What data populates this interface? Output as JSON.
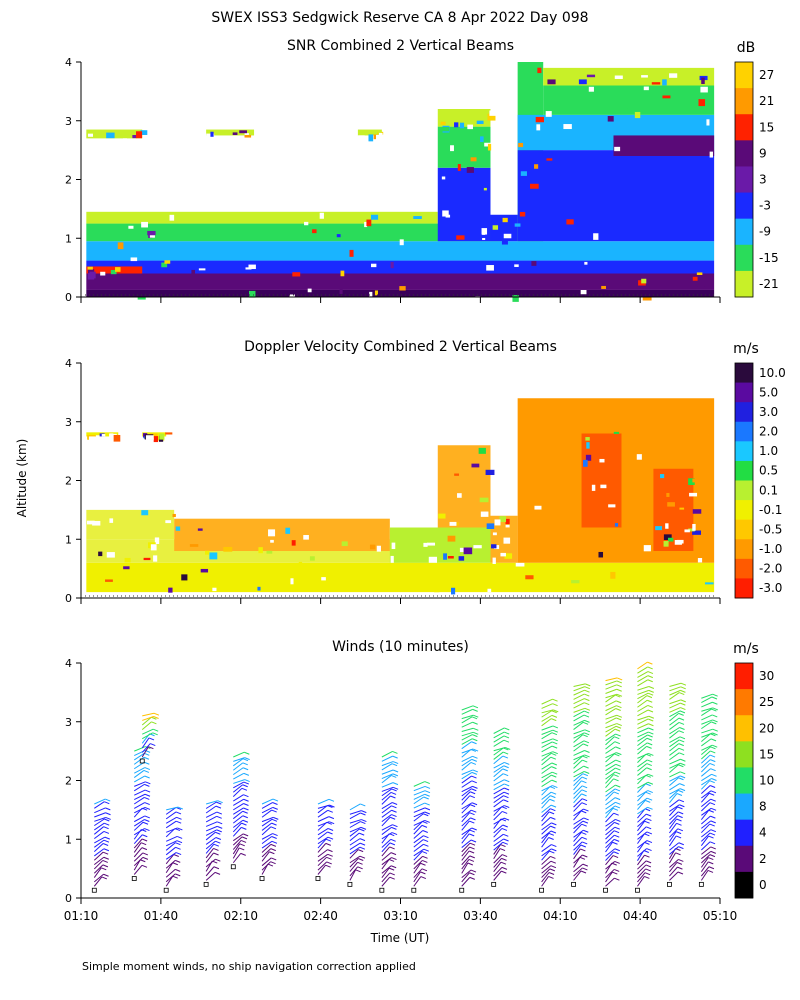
{
  "figure": {
    "title": "SWEX ISS3 Sedgwick Reserve CA   8 Apr 2022 Day 098",
    "ylabel": "Altitude (km)",
    "xlabel": "Time (UT)",
    "footnote": "Simple moment winds, no ship navigation correction applied"
  },
  "chart_data": [
    {
      "type": "heatmap",
      "title": "SNR Combined 2 Vertical Beams",
      "xlabel": "Time (UT)",
      "ylabel": "Altitude (km)",
      "x_ticks": [
        "01:10",
        "01:40",
        "02:10",
        "02:40",
        "03:10",
        "03:40",
        "04:10",
        "04:40",
        "05:10"
      ],
      "xlim_hours": [
        1.1667,
        5.1667
      ],
      "ylim_km": [
        0,
        4
      ],
      "y_ticks": [
        "0",
        "1",
        "2",
        "3",
        "4"
      ],
      "colorbar": {
        "unit": "dB",
        "labels": [
          "27",
          "21",
          "15",
          "9",
          "3",
          "-3",
          "-9",
          "-15",
          "-21"
        ],
        "colors": [
          "#ffd200",
          "#ff9a00",
          "#ff2200",
          "#5a0a78",
          "#6a1aa8",
          "#1a2aff",
          "#1ab4ff",
          "#2adc5a",
          "#c8f028"
        ]
      },
      "fields": [
        {
          "t0": 1.2,
          "t1": 5.13,
          "z0": 0.0,
          "z1": 0.12,
          "c": "#3a005a"
        },
        {
          "t0": 1.2,
          "t1": 5.13,
          "z0": 0.12,
          "z1": 0.4,
          "c": "#5a0a78"
        },
        {
          "t0": 1.2,
          "t1": 5.13,
          "z0": 0.4,
          "z1": 0.62,
          "c": "#1a2aff"
        },
        {
          "t0": 1.2,
          "t1": 5.13,
          "z0": 0.62,
          "z1": 0.95,
          "c": "#1ab4ff"
        },
        {
          "t0": 1.2,
          "t1": 3.8,
          "z0": 0.95,
          "z1": 1.25,
          "c": "#2adc5a"
        },
        {
          "t0": 1.2,
          "t1": 3.4,
          "z0": 1.25,
          "z1": 1.45,
          "c": "#c8f028"
        },
        {
          "t0": 1.2,
          "t1": 1.55,
          "z0": 0.4,
          "z1": 0.52,
          "c": "#ff2200"
        },
        {
          "t0": 3.4,
          "t1": 3.73,
          "z0": 0.95,
          "z1": 2.2,
          "c": "#1a2aff"
        },
        {
          "t0": 3.4,
          "t1": 3.73,
          "z0": 2.2,
          "z1": 2.9,
          "c": "#2adc5a"
        },
        {
          "t0": 3.4,
          "t1": 3.73,
          "z0": 2.9,
          "z1": 3.2,
          "c": "#c8f028"
        },
        {
          "t0": 3.73,
          "t1": 3.9,
          "z0": 0.95,
          "z1": 1.4,
          "c": "#1a2aff"
        },
        {
          "t0": 3.9,
          "t1": 4.06,
          "z0": 0.95,
          "z1": 4.0,
          "c": "#2adc5a"
        },
        {
          "t0": 3.9,
          "t1": 5.13,
          "z0": 0.95,
          "z1": 2.5,
          "c": "#1a2aff"
        },
        {
          "t0": 3.9,
          "t1": 5.13,
          "z0": 2.5,
          "z1": 3.1,
          "c": "#1ab4ff"
        },
        {
          "t0": 4.06,
          "t1": 5.13,
          "z0": 3.1,
          "z1": 3.6,
          "c": "#2adc5a"
        },
        {
          "t0": 4.06,
          "t1": 5.13,
          "z0": 3.6,
          "z1": 3.9,
          "c": "#c8f028"
        },
        {
          "t0": 4.5,
          "t1": 5.13,
          "z0": 2.4,
          "z1": 2.75,
          "c": "#5a0a78"
        },
        {
          "t0": 1.2,
          "t1": 1.55,
          "z0": 2.7,
          "z1": 2.85,
          "c": "#c8f028"
        },
        {
          "t0": 1.95,
          "t1": 2.25,
          "z0": 2.75,
          "z1": 2.85,
          "c": "#c8f028"
        },
        {
          "t0": 2.9,
          "t1": 3.05,
          "z0": 2.75,
          "z1": 2.85,
          "c": "#c8f028"
        }
      ]
    },
    {
      "type": "heatmap",
      "title": "Doppler Velocity Combined 2 Vertical Beams",
      "xlabel": "Time (UT)",
      "ylabel": "Altitude (km)",
      "x_ticks": [
        "01:10",
        "01:40",
        "02:10",
        "02:40",
        "03:10",
        "03:40",
        "04:10",
        "04:40",
        "05:10"
      ],
      "xlim_hours": [
        1.1667,
        5.1667
      ],
      "ylim_km": [
        0,
        4
      ],
      "y_ticks": [
        "0",
        "1",
        "2",
        "3",
        "4"
      ],
      "colorbar": {
        "unit": "m/s",
        "labels": [
          "10.0",
          "5.0",
          "3.0",
          "2.0",
          "1.0",
          "0.5",
          "0.1",
          "-0.1",
          "-0.5",
          "-1.0",
          "-2.0",
          "-3.0"
        ],
        "colors": [
          "#2a0a3c",
          "#5a0aa0",
          "#2020e0",
          "#1a78ff",
          "#1ac8ff",
          "#22dd44",
          "#b8f030",
          "#f0f000",
          "#ffc800",
          "#ff9a00",
          "#ff5a00",
          "#ff1e00"
        ]
      },
      "fields": [
        {
          "t0": 1.2,
          "t1": 5.13,
          "z0": 0.1,
          "z1": 0.6,
          "c": "#f0f000"
        },
        {
          "t0": 1.2,
          "t1": 3.4,
          "z0": 0.6,
          "z1": 1.0,
          "c": "#e8f040"
        },
        {
          "t0": 1.2,
          "t1": 1.75,
          "z0": 1.0,
          "z1": 1.5,
          "c": "#e8f040"
        },
        {
          "t0": 1.75,
          "t1": 3.1,
          "z0": 0.8,
          "z1": 1.35,
          "c": "#ffb020"
        },
        {
          "t0": 3.1,
          "t1": 3.73,
          "z0": 0.6,
          "z1": 1.2,
          "c": "#b8f030"
        },
        {
          "t0": 3.4,
          "t1": 3.73,
          "z0": 1.2,
          "z1": 2.6,
          "c": "#ffb020"
        },
        {
          "t0": 3.73,
          "t1": 3.9,
          "z0": 0.6,
          "z1": 1.4,
          "c": "#ffb020"
        },
        {
          "t0": 3.9,
          "t1": 5.13,
          "z0": 0.6,
          "z1": 3.4,
          "c": "#ff9a00"
        },
        {
          "t0": 4.3,
          "t1": 4.55,
          "z0": 1.2,
          "z1": 2.8,
          "c": "#ff5a00"
        },
        {
          "t0": 4.75,
          "t1": 5.0,
          "z0": 0.8,
          "z1": 2.2,
          "c": "#ff5a00"
        },
        {
          "t0": 1.2,
          "t1": 1.4,
          "z0": 2.75,
          "z1": 2.82,
          "c": "#f0f000"
        },
        {
          "t0": 1.55,
          "t1": 1.7,
          "z0": 2.75,
          "z1": 2.82,
          "c": "#f0f000"
        }
      ]
    },
    {
      "type": "scatter",
      "subtype": "wind-barbs",
      "title": "Winds (10 minutes)",
      "xlabel": "Time (UT)",
      "ylabel": "Altitude (km)",
      "x_ticks": [
        "01:10",
        "01:40",
        "02:10",
        "02:40",
        "03:10",
        "03:40",
        "04:10",
        "04:40",
        "05:10"
      ],
      "xlim_hours": [
        1.1667,
        5.1667
      ],
      "ylim_km": [
        0,
        4
      ],
      "y_ticks": [
        "0",
        "1",
        "2",
        "3",
        "4"
      ],
      "colorbar": {
        "unit": "m/s",
        "labels": [
          "30",
          "25",
          "20",
          "15",
          "10",
          "8",
          "4",
          "2",
          "0"
        ],
        "colors": [
          "#ff1e00",
          "#ff7a00",
          "#ffc000",
          "#8ee020",
          "#22dd66",
          "#1aa8ff",
          "#2020ff",
          "#5a0a78",
          "#000000"
        ]
      },
      "profiles": [
        {
          "t": 1.25,
          "z0": 0.2,
          "z1": 1.6,
          "speed_top": 6
        },
        {
          "t": 1.5,
          "z0": 0.4,
          "z1": 2.5,
          "speed_top": 8
        },
        {
          "t": 1.55,
          "z0": 2.4,
          "z1": 3.1,
          "speed_top": 22
        },
        {
          "t": 1.7,
          "z0": 0.2,
          "z1": 1.5,
          "speed_top": 6
        },
        {
          "t": 1.95,
          "z0": 0.3,
          "z1": 1.6,
          "speed_top": 6
        },
        {
          "t": 2.12,
          "z0": 0.6,
          "z1": 2.4,
          "speed_top": 8
        },
        {
          "t": 2.3,
          "z0": 0.4,
          "z1": 1.6,
          "speed_top": 6
        },
        {
          "t": 2.65,
          "z0": 0.4,
          "z1": 1.6,
          "speed_top": 6
        },
        {
          "t": 2.85,
          "z0": 0.3,
          "z1": 1.5,
          "speed_top": 6
        },
        {
          "t": 3.05,
          "z0": 0.2,
          "z1": 2.4,
          "speed_top": 8
        },
        {
          "t": 3.25,
          "z0": 0.2,
          "z1": 1.9,
          "speed_top": 8
        },
        {
          "t": 3.55,
          "z0": 0.2,
          "z1": 3.2,
          "speed_top": 10
        },
        {
          "t": 3.75,
          "z0": 0.3,
          "z1": 2.8,
          "speed_top": 10
        },
        {
          "t": 4.05,
          "z0": 0.2,
          "z1": 3.3,
          "speed_top": 15
        },
        {
          "t": 4.25,
          "z0": 0.3,
          "z1": 3.6,
          "speed_top": 15
        },
        {
          "t": 4.45,
          "z0": 0.2,
          "z1": 3.7,
          "speed_top": 18
        },
        {
          "t": 4.65,
          "z0": 0.2,
          "z1": 3.9,
          "speed_top": 18
        },
        {
          "t": 4.85,
          "z0": 0.3,
          "z1": 3.6,
          "speed_top": 15
        },
        {
          "t": 5.05,
          "z0": 0.3,
          "z1": 3.4,
          "speed_top": 12
        }
      ]
    }
  ]
}
